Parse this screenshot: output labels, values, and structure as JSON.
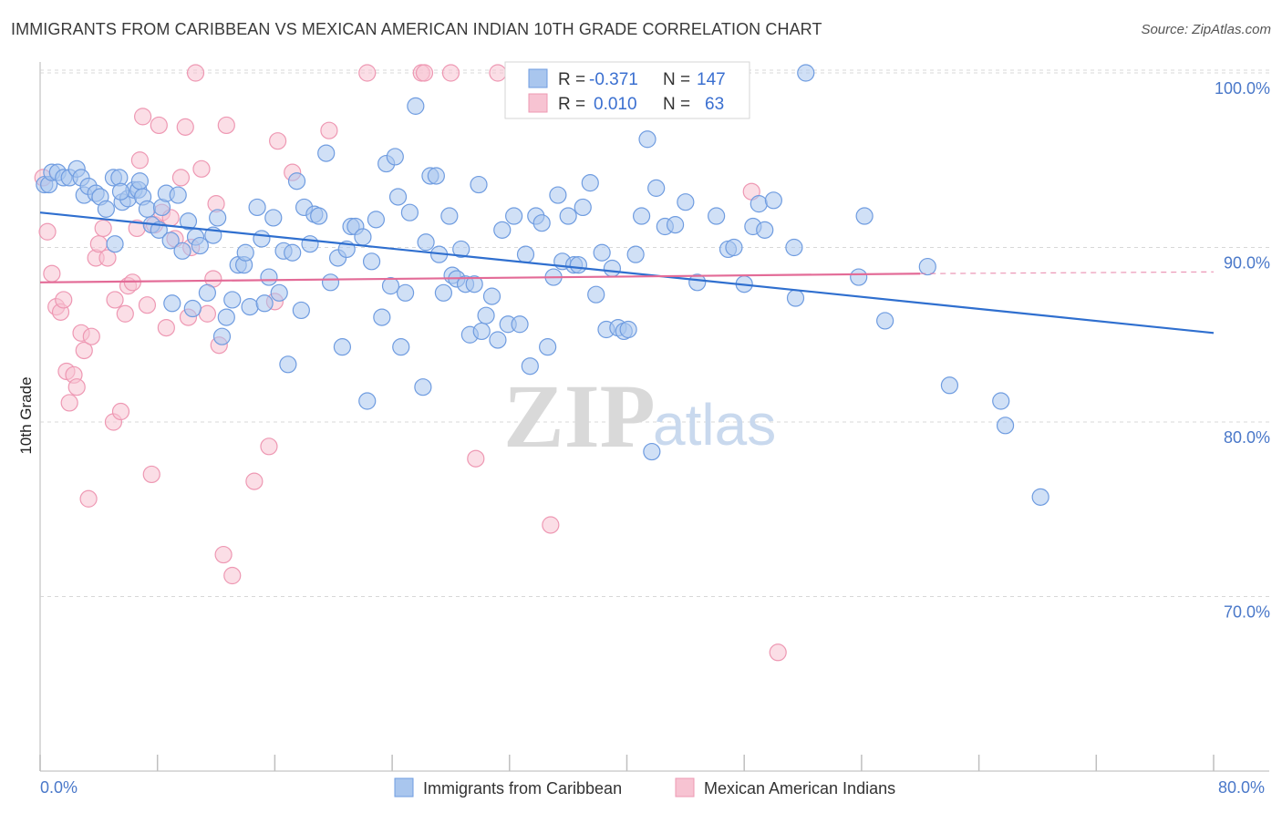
{
  "header": {
    "title": "IMMIGRANTS FROM CARIBBEAN VS MEXICAN AMERICAN INDIAN 10TH GRADE CORRELATION CHART",
    "source": "Source: ZipAtlas.com"
  },
  "watermark": {
    "zip": "ZIP",
    "atlas": "atlas"
  },
  "colors": {
    "blue_fill": "#a9c6ee",
    "blue_stroke": "#6f9ce0",
    "blue_line": "#2f6fcf",
    "pink_fill": "#f7c3d2",
    "pink_stroke": "#ee98b3",
    "pink_line": "#e36b97",
    "grid": "#d8d8d8",
    "tick_text": "#4a78c9"
  },
  "stats": {
    "rows": [
      {
        "r_label": "R =",
        "r_value": "-0.371",
        "n_label": "N =",
        "n_value": "147"
      },
      {
        "r_label": "R =",
        "r_value": "0.010",
        "n_label": "N =",
        "n_value": "63"
      }
    ]
  },
  "legend": {
    "items": [
      {
        "label": "Immigrants from Caribbean"
      },
      {
        "label": "Mexican American Indians"
      }
    ]
  },
  "chart_data": {
    "type": "scatter",
    "title": "IMMIGRANTS FROM CARIBBEAN VS MEXICAN AMERICAN INDIAN 10TH GRADE CORRELATION CHART",
    "xlabel": "",
    "ylabel": "10th Grade",
    "xlim": [
      0,
      80
    ],
    "ylim": [
      61,
      101.5
    ],
    "x_tick_labels": [
      "0.0%",
      "80.0%"
    ],
    "y_ticks": [
      70,
      80,
      90,
      100
    ],
    "y_tick_labels": [
      "70.0%",
      "80.0%",
      "90.0%",
      "100.0%"
    ],
    "grid": "horizontal dashed",
    "series": [
      {
        "name": "Immigrants from Caribbean",
        "r": -0.371,
        "n": 147,
        "trend": {
          "x": [
            0,
            80
          ],
          "y": [
            92.0,
            85.1
          ]
        },
        "points": [
          [
            0.3,
            93.6
          ],
          [
            0.6,
            93.6
          ],
          [
            0.8,
            94.3
          ],
          [
            1.2,
            94.3
          ],
          [
            1.6,
            94.0
          ],
          [
            2.0,
            94.0
          ],
          [
            2.5,
            94.5
          ],
          [
            2.8,
            94.0
          ],
          [
            3.0,
            93.0
          ],
          [
            3.3,
            93.5
          ],
          [
            3.8,
            93.1
          ],
          [
            4.1,
            92.9
          ],
          [
            4.5,
            92.2
          ],
          [
            5.0,
            94.0
          ],
          [
            5.1,
            90.2
          ],
          [
            5.4,
            94.0
          ],
          [
            5.6,
            92.6
          ],
          [
            6.0,
            92.8
          ],
          [
            6.4,
            93.3
          ],
          [
            6.7,
            93.3
          ],
          [
            6.8,
            93.8
          ],
          [
            7.0,
            92.9
          ],
          [
            7.3,
            92.2
          ],
          [
            7.6,
            91.3
          ],
          [
            8.1,
            91.0
          ],
          [
            8.3,
            92.3
          ],
          [
            8.6,
            93.1
          ],
          [
            8.9,
            90.4
          ],
          [
            9.0,
            86.8
          ],
          [
            9.4,
            93.0
          ],
          [
            9.7,
            89.8
          ],
          [
            10.1,
            91.5
          ],
          [
            10.4,
            86.5
          ],
          [
            10.6,
            90.6
          ],
          [
            10.9,
            90.1
          ],
          [
            11.4,
            87.4
          ],
          [
            11.8,
            90.7
          ],
          [
            12.1,
            91.7
          ],
          [
            12.4,
            84.9
          ],
          [
            12.7,
            86.0
          ],
          [
            13.1,
            87.0
          ],
          [
            13.5,
            89.0
          ],
          [
            13.9,
            89.0
          ],
          [
            14.0,
            89.7
          ],
          [
            14.3,
            86.6
          ],
          [
            14.8,
            92.3
          ],
          [
            15.1,
            90.5
          ],
          [
            15.3,
            86.8
          ],
          [
            15.6,
            88.3
          ],
          [
            15.9,
            91.7
          ],
          [
            16.3,
            87.4
          ],
          [
            16.6,
            89.8
          ],
          [
            16.9,
            83.3
          ],
          [
            17.2,
            89.7
          ],
          [
            17.5,
            93.8
          ],
          [
            17.8,
            86.4
          ],
          [
            18.0,
            92.3
          ],
          [
            18.4,
            90.2
          ],
          [
            18.7,
            91.9
          ],
          [
            19.0,
            91.8
          ],
          [
            19.5,
            95.4
          ],
          [
            19.8,
            88.0
          ],
          [
            20.3,
            89.4
          ],
          [
            20.6,
            84.3
          ],
          [
            20.9,
            89.9
          ],
          [
            21.2,
            91.2
          ],
          [
            21.5,
            91.2
          ],
          [
            22.0,
            90.6
          ],
          [
            22.3,
            81.2
          ],
          [
            22.6,
            89.2
          ],
          [
            22.9,
            91.6
          ],
          [
            23.3,
            86.0
          ],
          [
            23.6,
            94.8
          ],
          [
            23.9,
            87.8
          ],
          [
            24.2,
            95.2
          ],
          [
            24.4,
            92.9
          ],
          [
            24.6,
            84.3
          ],
          [
            24.9,
            87.4
          ],
          [
            25.2,
            92.0
          ],
          [
            25.6,
            98.1
          ],
          [
            26.1,
            82.0
          ],
          [
            26.3,
            90.3
          ],
          [
            26.6,
            94.1
          ],
          [
            27.0,
            94.1
          ],
          [
            27.2,
            89.6
          ],
          [
            27.5,
            87.4
          ],
          [
            27.9,
            91.8
          ],
          [
            28.1,
            88.4
          ],
          [
            28.4,
            88.2
          ],
          [
            28.7,
            89.9
          ],
          [
            29.0,
            87.9
          ],
          [
            29.3,
            85.0
          ],
          [
            29.6,
            87.9
          ],
          [
            29.9,
            93.6
          ],
          [
            30.1,
            85.2
          ],
          [
            30.4,
            86.1
          ],
          [
            30.8,
            87.2
          ],
          [
            31.2,
            84.7
          ],
          [
            31.5,
            91.0
          ],
          [
            31.9,
            85.6
          ],
          [
            32.3,
            91.8
          ],
          [
            32.7,
            85.6
          ],
          [
            33.1,
            89.6
          ],
          [
            33.4,
            83.2
          ],
          [
            33.8,
            91.8
          ],
          [
            34.2,
            91.4
          ],
          [
            34.6,
            84.3
          ],
          [
            35.0,
            88.3
          ],
          [
            35.3,
            93.0
          ],
          [
            35.6,
            89.2
          ],
          [
            36.0,
            91.8
          ],
          [
            36.4,
            89.0
          ],
          [
            36.7,
            89.0
          ],
          [
            37.0,
            92.3
          ],
          [
            37.5,
            93.7
          ],
          [
            37.9,
            87.3
          ],
          [
            38.3,
            89.7
          ],
          [
            38.6,
            85.3
          ],
          [
            39.0,
            88.8
          ],
          [
            39.4,
            85.4
          ],
          [
            39.8,
            85.2
          ],
          [
            40.1,
            85.3
          ],
          [
            40.6,
            89.6
          ],
          [
            41.0,
            91.8
          ],
          [
            41.4,
            96.2
          ],
          [
            41.7,
            78.3
          ],
          [
            42.0,
            93.4
          ],
          [
            42.6,
            91.2
          ],
          [
            43.3,
            91.3
          ],
          [
            44.0,
            92.6
          ],
          [
            44.8,
            88.0
          ],
          [
            46.1,
            91.8
          ],
          [
            46.9,
            89.9
          ],
          [
            47.3,
            90.0
          ],
          [
            48.0,
            87.9
          ],
          [
            48.6,
            91.2
          ],
          [
            49.0,
            92.5
          ],
          [
            49.4,
            91.0
          ],
          [
            50.0,
            92.7
          ],
          [
            51.4,
            90.0
          ],
          [
            51.5,
            87.1
          ],
          [
            52.2,
            100.0
          ],
          [
            55.8,
            88.3
          ],
          [
            56.2,
            91.8
          ],
          [
            57.6,
            85.8
          ],
          [
            60.5,
            88.9
          ],
          [
            62.0,
            82.1
          ],
          [
            65.5,
            81.2
          ],
          [
            65.8,
            79.8
          ],
          [
            68.2,
            75.7
          ],
          [
            5.5,
            93.2
          ]
        ]
      },
      {
        "name": "Mexican American Indians",
        "r": 0.01,
        "n": 63,
        "trend": {
          "x": [
            0,
            60
          ],
          "y": [
            88.0,
            88.5
          ],
          "dashed_to": [
            80,
            88.6
          ]
        },
        "points": [
          [
            0.2,
            94.0
          ],
          [
            0.5,
            90.9
          ],
          [
            0.8,
            88.5
          ],
          [
            1.1,
            86.6
          ],
          [
            1.4,
            86.3
          ],
          [
            1.6,
            87.0
          ],
          [
            1.8,
            82.9
          ],
          [
            2.0,
            81.1
          ],
          [
            2.3,
            82.7
          ],
          [
            2.5,
            82.0
          ],
          [
            2.8,
            85.1
          ],
          [
            3.0,
            84.1
          ],
          [
            3.3,
            75.6
          ],
          [
            3.5,
            84.9
          ],
          [
            3.8,
            89.4
          ],
          [
            4.0,
            90.2
          ],
          [
            4.3,
            91.1
          ],
          [
            4.6,
            89.4
          ],
          [
            5.0,
            80.0
          ],
          [
            5.1,
            87.0
          ],
          [
            5.5,
            80.6
          ],
          [
            5.8,
            86.2
          ],
          [
            6.0,
            87.8
          ],
          [
            6.3,
            88.0
          ],
          [
            6.6,
            91.1
          ],
          [
            6.8,
            95.0
          ],
          [
            7.0,
            97.5
          ],
          [
            7.3,
            86.7
          ],
          [
            7.6,
            77.0
          ],
          [
            7.8,
            91.3
          ],
          [
            8.1,
            97.0
          ],
          [
            8.3,
            92.0
          ],
          [
            8.6,
            85.4
          ],
          [
            8.9,
            91.7
          ],
          [
            9.2,
            90.5
          ],
          [
            9.6,
            94.0
          ],
          [
            9.9,
            96.9
          ],
          [
            10.1,
            86.0
          ],
          [
            10.3,
            90.0
          ],
          [
            10.6,
            100.0
          ],
          [
            11.0,
            94.5
          ],
          [
            11.4,
            86.2
          ],
          [
            11.8,
            88.2
          ],
          [
            12.0,
            92.5
          ],
          [
            12.2,
            84.4
          ],
          [
            12.5,
            72.4
          ],
          [
            12.7,
            97.0
          ],
          [
            13.1,
            71.2
          ],
          [
            14.6,
            76.6
          ],
          [
            15.6,
            78.6
          ],
          [
            16.0,
            86.9
          ],
          [
            16.2,
            96.1
          ],
          [
            17.2,
            94.3
          ],
          [
            19.7,
            96.7
          ],
          [
            22.3,
            100.0
          ],
          [
            26.0,
            100.0
          ],
          [
            26.2,
            100.0
          ],
          [
            28.0,
            100.0
          ],
          [
            29.7,
            77.9
          ],
          [
            31.2,
            100.0
          ],
          [
            34.8,
            74.1
          ],
          [
            48.5,
            93.2
          ],
          [
            50.3,
            66.8
          ]
        ]
      }
    ]
  }
}
